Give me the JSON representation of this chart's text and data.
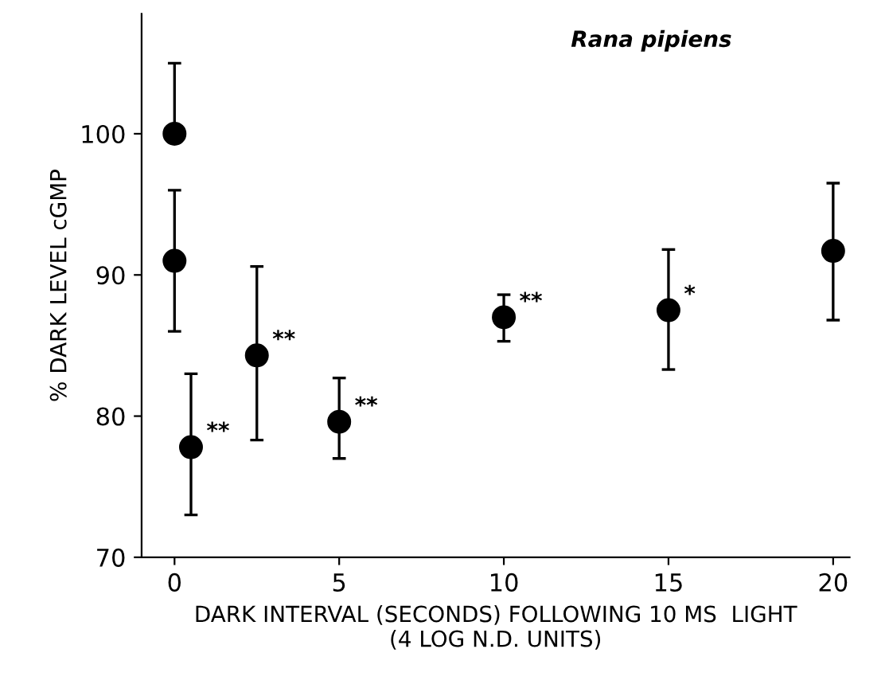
{
  "chart_data": {
    "type": "scatter",
    "title": "Rana pipiens",
    "xlabel": "DARK INTERVAL (SECONDS) FOLLOWING 10 MS  LIGHT\n(4 LOG N.D. UNITS)",
    "ylabel": "% DARK LEVEL cGMP",
    "series": [
      {
        "color": "#000000",
        "x": [
          0
        ],
        "values": [
          100
        ],
        "errors": [
          [
            100,
            105
          ]
        ]
      },
      {
        "color": "#000000",
        "x": [
          0,
          0.5,
          2.5,
          5,
          10,
          15,
          20
        ],
        "values": [
          91,
          77.8,
          84.3,
          79.6,
          87.0,
          87.5,
          91.7
        ],
        "errors": [
          [
            86,
            96
          ],
          [
            73,
            83
          ],
          [
            78.3,
            90.6
          ],
          [
            77,
            82.7
          ],
          [
            85.3,
            88.6
          ],
          [
            83.3,
            91.8
          ],
          [
            86.8,
            96.5
          ]
        ]
      }
    ],
    "annotations": [
      {
        "text": "**",
        "x": 0.5,
        "y": 77.8
      },
      {
        "text": "**",
        "x": 2.5,
        "y": 84.3
      },
      {
        "text": "**",
        "x": 5,
        "y": 79.6
      },
      {
        "text": "**",
        "x": 10,
        "y": 87.0
      },
      {
        "text": "*",
        "x": 15,
        "y": 87.5
      }
    ],
    "xlim": [
      -1,
      20.5
    ],
    "ylim": [
      70,
      108.5
    ],
    "xticks": [
      0,
      5,
      10,
      15,
      20
    ],
    "yticks": [
      70,
      80,
      90,
      100
    ],
    "marker": "circle",
    "grid": false,
    "legend": false
  }
}
